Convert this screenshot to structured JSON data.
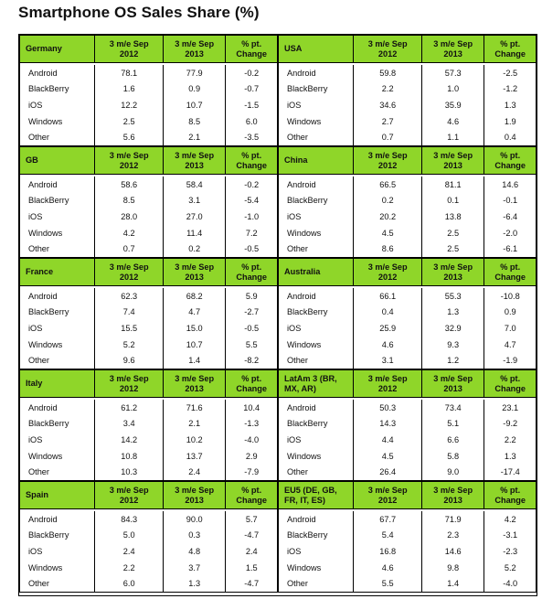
{
  "title": "Smartphone OS Sales Share (%)",
  "columns": [
    "3 m/e Sep\n2012",
    "3 m/e Sep\n2013",
    "% pt.\nChange"
  ],
  "regions": [
    {
      "name": "Germany",
      "rows": [
        [
          "Android",
          "78.1",
          "77.9",
          "-0.2"
        ],
        [
          "BlackBerry",
          "1.6",
          "0.9",
          "-0.7"
        ],
        [
          "iOS",
          "12.2",
          "10.7",
          "-1.5"
        ],
        [
          "Windows",
          "2.5",
          "8.5",
          "6.0"
        ],
        [
          "Other",
          "5.6",
          "2.1",
          "-3.5"
        ]
      ]
    },
    {
      "name": "USA",
      "rows": [
        [
          "Android",
          "59.8",
          "57.3",
          "-2.5"
        ],
        [
          "BlackBerry",
          "2.2",
          "1.0",
          "-1.2"
        ],
        [
          "iOS",
          "34.6",
          "35.9",
          "1.3"
        ],
        [
          "Windows",
          "2.7",
          "4.6",
          "1.9"
        ],
        [
          "Other",
          "0.7",
          "1.1",
          "0.4"
        ]
      ]
    },
    {
      "name": "GB",
      "rows": [
        [
          "Android",
          "58.6",
          "58.4",
          "-0.2"
        ],
        [
          "BlackBerry",
          "8.5",
          "3.1",
          "-5.4"
        ],
        [
          "iOS",
          "28.0",
          "27.0",
          "-1.0"
        ],
        [
          "Windows",
          "4.2",
          "11.4",
          "7.2"
        ],
        [
          "Other",
          "0.7",
          "0.2",
          "-0.5"
        ]
      ]
    },
    {
      "name": "China",
      "rows": [
        [
          "Android",
          "66.5",
          "81.1",
          "14.6"
        ],
        [
          "BlackBerry",
          "0.2",
          "0.1",
          "-0.1"
        ],
        [
          "iOS",
          "20.2",
          "13.8",
          "-6.4"
        ],
        [
          "Windows",
          "4.5",
          "2.5",
          "-2.0"
        ],
        [
          "Other",
          "8.6",
          "2.5",
          "-6.1"
        ]
      ]
    },
    {
      "name": "France",
      "rows": [
        [
          "Android",
          "62.3",
          "68.2",
          "5.9"
        ],
        [
          "BlackBerry",
          "7.4",
          "4.7",
          "-2.7"
        ],
        [
          "iOS",
          "15.5",
          "15.0",
          "-0.5"
        ],
        [
          "Windows",
          "5.2",
          "10.7",
          "5.5"
        ],
        [
          "Other",
          "9.6",
          "1.4",
          "-8.2"
        ]
      ]
    },
    {
      "name": "Australia",
      "rows": [
        [
          "Android",
          "66.1",
          "55.3",
          "-10.8"
        ],
        [
          "BlackBerry",
          "0.4",
          "1.3",
          "0.9"
        ],
        [
          "iOS",
          "25.9",
          "32.9",
          "7.0"
        ],
        [
          "Windows",
          "4.6",
          "9.3",
          "4.7"
        ],
        [
          "Other",
          "3.1",
          "1.2",
          "-1.9"
        ]
      ]
    },
    {
      "name": "Italy",
      "rows": [
        [
          "Android",
          "61.2",
          "71.6",
          "10.4"
        ],
        [
          "BlackBerry",
          "3.4",
          "2.1",
          "-1.3"
        ],
        [
          "iOS",
          "14.2",
          "10.2",
          "-4.0"
        ],
        [
          "Windows",
          "10.8",
          "13.7",
          "2.9"
        ],
        [
          "Other",
          "10.3",
          "2.4",
          "-7.9"
        ]
      ]
    },
    {
      "name": "LatAm 3 (BR,\nMX, AR)",
      "rows": [
        [
          "Android",
          "50.3",
          "73.4",
          "23.1"
        ],
        [
          "BlackBerry",
          "14.3",
          "5.1",
          "-9.2"
        ],
        [
          "iOS",
          "4.4",
          "6.6",
          "2.2"
        ],
        [
          "Windows",
          "4.5",
          "5.8",
          "1.3"
        ],
        [
          "Other",
          "26.4",
          "9.0",
          "-17.4"
        ]
      ]
    },
    {
      "name": "Spain",
      "rows": [
        [
          "Android",
          "84.3",
          "90.0",
          "5.7"
        ],
        [
          "BlackBerry",
          "5.0",
          "0.3",
          "-4.7"
        ],
        [
          "iOS",
          "2.4",
          "4.8",
          "2.4"
        ],
        [
          "Windows",
          "2.2",
          "3.7",
          "1.5"
        ],
        [
          "Other",
          "6.0",
          "1.3",
          "-4.7"
        ]
      ]
    },
    {
      "name": "EU5 (DE, GB,\nFR, IT, ES)",
      "rows": [
        [
          "Android",
          "67.7",
          "71.9",
          "4.2"
        ],
        [
          "BlackBerry",
          "5.4",
          "2.3",
          "-3.1"
        ],
        [
          "iOS",
          "16.8",
          "14.6",
          "-2.3"
        ],
        [
          "Windows",
          "4.6",
          "9.8",
          "5.2"
        ],
        [
          "Other",
          "5.5",
          "1.4",
          "-4.0"
        ]
      ]
    }
  ]
}
